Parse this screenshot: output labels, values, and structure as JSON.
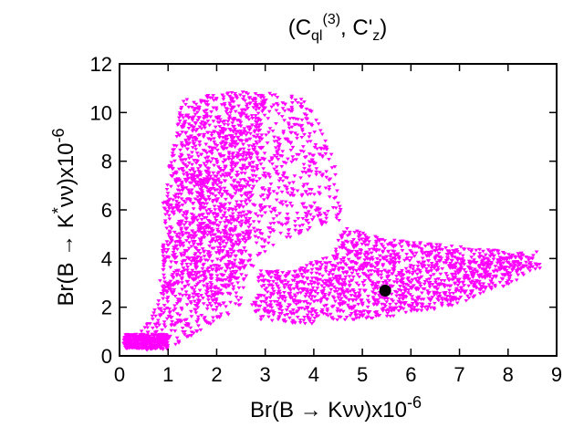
{
  "chart_data": {
    "type": "scatter",
    "title": "(C",
    "title_sub": "ql",
    "title_sup": "(3)",
    "title_rest": ", C'",
    "title_sub2": "z",
    "title_end": ")",
    "xlabel": "Br(B → Kνν)x10",
    "xlabel_exp": "-6",
    "ylabel_a": "Br(B → K",
    "ylabel_sup": "*",
    "ylabel_b": "νν)x10",
    "ylabel_exp": "-6",
    "xlim": [
      0,
      9
    ],
    "ylim": [
      0,
      12
    ],
    "x_ticks": [
      "0",
      "1",
      "2",
      "3",
      "4",
      "5",
      "6",
      "7",
      "8",
      "9"
    ],
    "y_ticks": [
      "0",
      "2",
      "4",
      "6",
      "8",
      "10",
      "12"
    ],
    "grid": false,
    "colors": {
      "points": "#ff00ff",
      "highlight": "#000000",
      "frame": "#000000"
    },
    "series": [
      {
        "marker": "triangle-down",
        "color": "#ff00ff",
        "regions": [
          {
            "shape": "polygon",
            "density": 1100,
            "vertices": [
              [
                0.05,
                0.25
              ],
              [
                1.0,
                0.25
              ],
              [
                2.5,
                2.0
              ],
              [
                2.6,
                3.5
              ],
              [
                2.75,
                6.2
              ],
              [
                3.0,
                10.8
              ],
              [
                2.2,
                10.8
              ],
              [
                1.4,
                10.3
              ],
              [
                1.0,
                7.8
              ],
              [
                0.8,
                2.3
              ],
              [
                0.4,
                0.9
              ],
              [
                0.1,
                0.9
              ]
            ]
          },
          {
            "shape": "polygon",
            "density": 1200,
            "vertices": [
              [
                0.9,
                6.5
              ],
              [
                1.3,
                10.6
              ],
              [
                2.0,
                10.8
              ],
              [
                2.9,
                10.9
              ],
              [
                3.8,
                10.6
              ],
              [
                4.4,
                8.5
              ],
              [
                4.6,
                5.6
              ],
              [
                3.8,
                5.1
              ],
              [
                3.0,
                4.2
              ],
              [
                2.7,
                3.5
              ],
              [
                2.3,
                2.6
              ],
              [
                1.6,
                2.2
              ],
              [
                0.9,
                2.3
              ]
            ]
          },
          {
            "shape": "polygon",
            "density": 1500,
            "vertices": [
              [
                2.7,
                2.0
              ],
              [
                2.8,
                1.5
              ],
              [
                3.8,
                1.3
              ],
              [
                5.5,
                1.6
              ],
              [
                6.8,
                2.0
              ],
              [
                8.2,
                3.1
              ],
              [
                8.3,
                4.2
              ],
              [
                7.7,
                4.4
              ],
              [
                6.5,
                4.6
              ],
              [
                5.5,
                4.8
              ],
              [
                4.6,
                5.3
              ],
              [
                4.4,
                4.2
              ],
              [
                3.5,
                3.5
              ],
              [
                2.8,
                3.5
              ]
            ]
          },
          {
            "shape": "polygon",
            "density": 350,
            "vertices": [
              [
                0.1,
                0.3
              ],
              [
                1.0,
                0.3
              ],
              [
                1.0,
                0.9
              ],
              [
                0.1,
                0.9
              ]
            ]
          },
          {
            "shape": "polygon",
            "density": 120,
            "vertices": [
              [
                7.0,
                3.1
              ],
              [
                8.7,
                3.4
              ],
              [
                8.6,
                4.3
              ],
              [
                7.6,
                4.1
              ]
            ]
          }
        ]
      }
    ],
    "highlight_point": {
      "x": 5.47,
      "y": 2.68,
      "marker": "filled-circle"
    }
  }
}
